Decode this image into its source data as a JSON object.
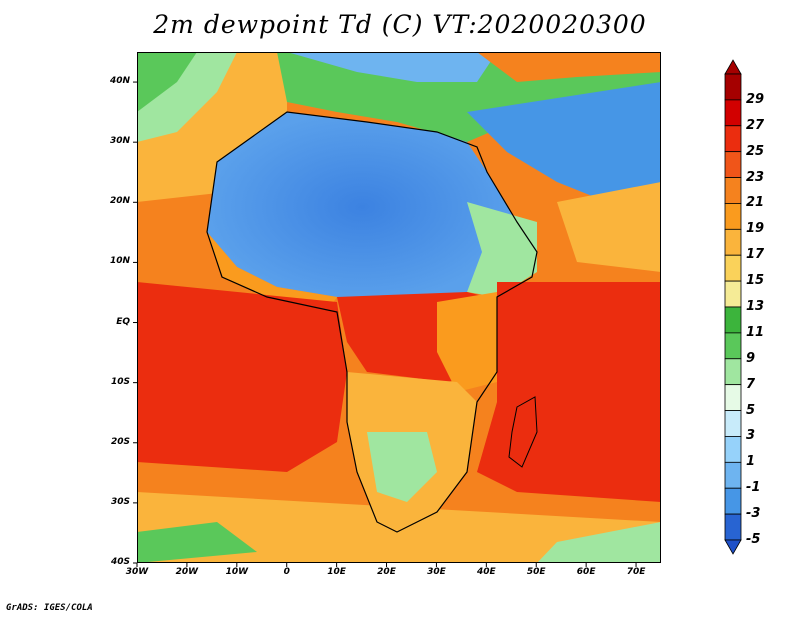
{
  "title": "2m dewpoint Td (C) VT:2020020300",
  "footer": "GrADS: IGES/COLA",
  "map": {
    "lon_range": [
      -30,
      75
    ],
    "lat_range": [
      -40,
      45
    ],
    "lon_ticks": [
      {
        "value": -30,
        "label": "30W"
      },
      {
        "value": -20,
        "label": "20W"
      },
      {
        "value": -10,
        "label": "10W"
      },
      {
        "value": 0,
        "label": "0"
      },
      {
        "value": 10,
        "label": "10E"
      },
      {
        "value": 20,
        "label": "20E"
      },
      {
        "value": 30,
        "label": "30E"
      },
      {
        "value": 40,
        "label": "40E"
      },
      {
        "value": 50,
        "label": "50E"
      },
      {
        "value": 60,
        "label": "60E"
      },
      {
        "value": 70,
        "label": "70E"
      }
    ],
    "lat_ticks": [
      {
        "value": 40,
        "label": "40N"
      },
      {
        "value": 30,
        "label": "30N"
      },
      {
        "value": 20,
        "label": "20N"
      },
      {
        "value": 10,
        "label": "10N"
      },
      {
        "value": 0,
        "label": "EQ"
      },
      {
        "value": -10,
        "label": "10S"
      },
      {
        "value": -20,
        "label": "20S"
      },
      {
        "value": -30,
        "label": "30S"
      },
      {
        "value": -40,
        "label": "40S"
      }
    ]
  },
  "colorbar": {
    "levels": [
      {
        "label": "29",
        "color": "#a50000"
      },
      {
        "label": "27",
        "color": "#d20000"
      },
      {
        "label": "25",
        "color": "#eb2d0f"
      },
      {
        "label": "23",
        "color": "#f05519"
      },
      {
        "label": "21",
        "color": "#f5821e"
      },
      {
        "label": "19",
        "color": "#fa9b1e"
      },
      {
        "label": "17",
        "color": "#fab43c"
      },
      {
        "label": "15",
        "color": "#fad25a"
      },
      {
        "label": "13",
        "color": "#f5eb96"
      },
      {
        "label": "11",
        "color": "#3cb43c"
      },
      {
        "label": "9",
        "color": "#5ac85a"
      },
      {
        "label": "7",
        "color": "#a0e6a0"
      },
      {
        "label": "5",
        "color": "#e6fae6"
      },
      {
        "label": "3",
        "color": "#c8ebfa"
      },
      {
        "label": "1",
        "color": "#96d2fa"
      },
      {
        "label": "-1",
        "color": "#6eb4f0"
      },
      {
        "label": "-3",
        "color": "#4696e6"
      },
      {
        "label": "-5",
        "color": "#2864d2"
      }
    ],
    "below_color": "#1e50c8"
  }
}
